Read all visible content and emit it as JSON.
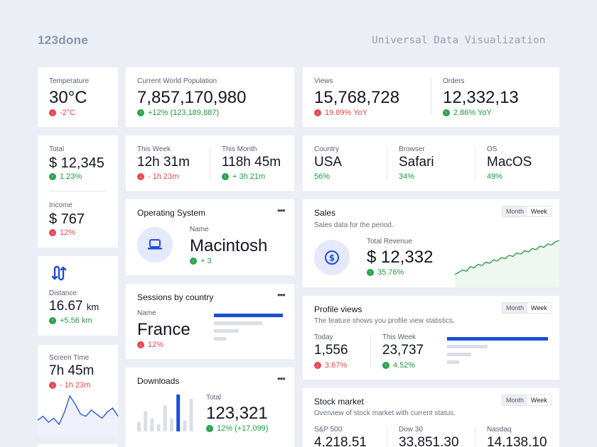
{
  "header": {
    "logo": "123done",
    "title": "Universal Data Visualization"
  },
  "temperature": {
    "label": "Temperature",
    "value": "30°C",
    "delta": "-2°C"
  },
  "population": {
    "label": "Current World Population",
    "value": "7,857,170,980",
    "delta": "+12% (123,189,887)"
  },
  "views": {
    "label": "Views",
    "value": "15,768,728",
    "delta": "19.89% YoY"
  },
  "orders": {
    "label": "Orders",
    "value": "12,332,13",
    "delta": "2.86% YoY"
  },
  "total": {
    "label": "Total",
    "value": "$ 12,345",
    "delta": "1.23%"
  },
  "income": {
    "label": "Income",
    "value": "$ 767",
    "delta": "12%"
  },
  "this_week": {
    "label": "This Week",
    "value": "12h 31m",
    "delta": "- 1h 23m"
  },
  "this_month": {
    "label": "This Month",
    "value": "118h 45m",
    "delta": "+ 3h 21m"
  },
  "country": {
    "label": "Country",
    "value": "USA",
    "pct": "56%"
  },
  "browser": {
    "label": "Browser",
    "value": "Safari",
    "pct": "34%"
  },
  "os": {
    "label": "OS",
    "value": "MacOS",
    "pct": "49%"
  },
  "operating_system": {
    "title": "Operating System",
    "more": "•••",
    "name_label": "Name",
    "name": "Macintosh",
    "delta": "+ 3"
  },
  "sales": {
    "title": "Sales",
    "subtitle": "Sales data for the period.",
    "toggle": [
      "Month",
      "Week"
    ],
    "revenue_label": "Total Revenue",
    "revenue": "$ 12,332",
    "delta": "35.76%",
    "spark": [
      8,
      10,
      12,
      11,
      15,
      14,
      17,
      16,
      19,
      18,
      21,
      20,
      23,
      22,
      25,
      24,
      27,
      26,
      29,
      28,
      31,
      30,
      33,
      32,
      35,
      34,
      37,
      38
    ]
  },
  "distance": {
    "label": "Distance",
    "value": "16.67",
    "unit": "km",
    "delta": "+5.56 km"
  },
  "sessions": {
    "title": "Sessions by country",
    "more": "•••",
    "name_label": "Name",
    "name": "France",
    "delta": "12%",
    "bars": [
      1.0,
      0.7,
      0.36,
      0.18
    ]
  },
  "profile_views": {
    "title": "Profile views",
    "subtitle": "The feature shows you profile view statistics.",
    "toggle": [
      "Month",
      "Week"
    ],
    "today_label": "Today",
    "today": "1,556",
    "today_delta": "3.67%",
    "week_label": "This Week",
    "week": "23,737",
    "week_delta": "4.52%",
    "bars": [
      1.0,
      0.4,
      0.24,
      0.12
    ]
  },
  "screen_time": {
    "label": "Screen Time",
    "value": "7h 45m",
    "delta": "- 1h 23m",
    "spark": [
      10,
      12,
      9,
      11,
      8,
      14,
      22,
      18,
      13,
      12,
      15,
      13,
      11,
      14,
      16,
      12
    ]
  },
  "downloads": {
    "title": "Downloads",
    "more": "•••",
    "total_label": "Total",
    "total": "123,321",
    "delta": "12% (+17,099)",
    "bars": [
      0.25,
      0.55,
      0.35,
      0.2,
      0.7,
      0.35,
      1.0,
      0.3,
      0.88
    ]
  },
  "stock": {
    "title": "Stock market",
    "subtitle": "Overview of stock market with current status.",
    "toggle": [
      "Month",
      "Week"
    ],
    "items": [
      {
        "label": "S&P 500",
        "value": "4,218.51"
      },
      {
        "label": "Dow 30",
        "value": "33,851.30"
      },
      {
        "label": "Nasdaq",
        "value": "14,138.10"
      }
    ]
  },
  "colors": {
    "accent": "#1a4fd6",
    "up": "#1d9a3c",
    "down": "#e5484d",
    "background": "#eceef5"
  }
}
